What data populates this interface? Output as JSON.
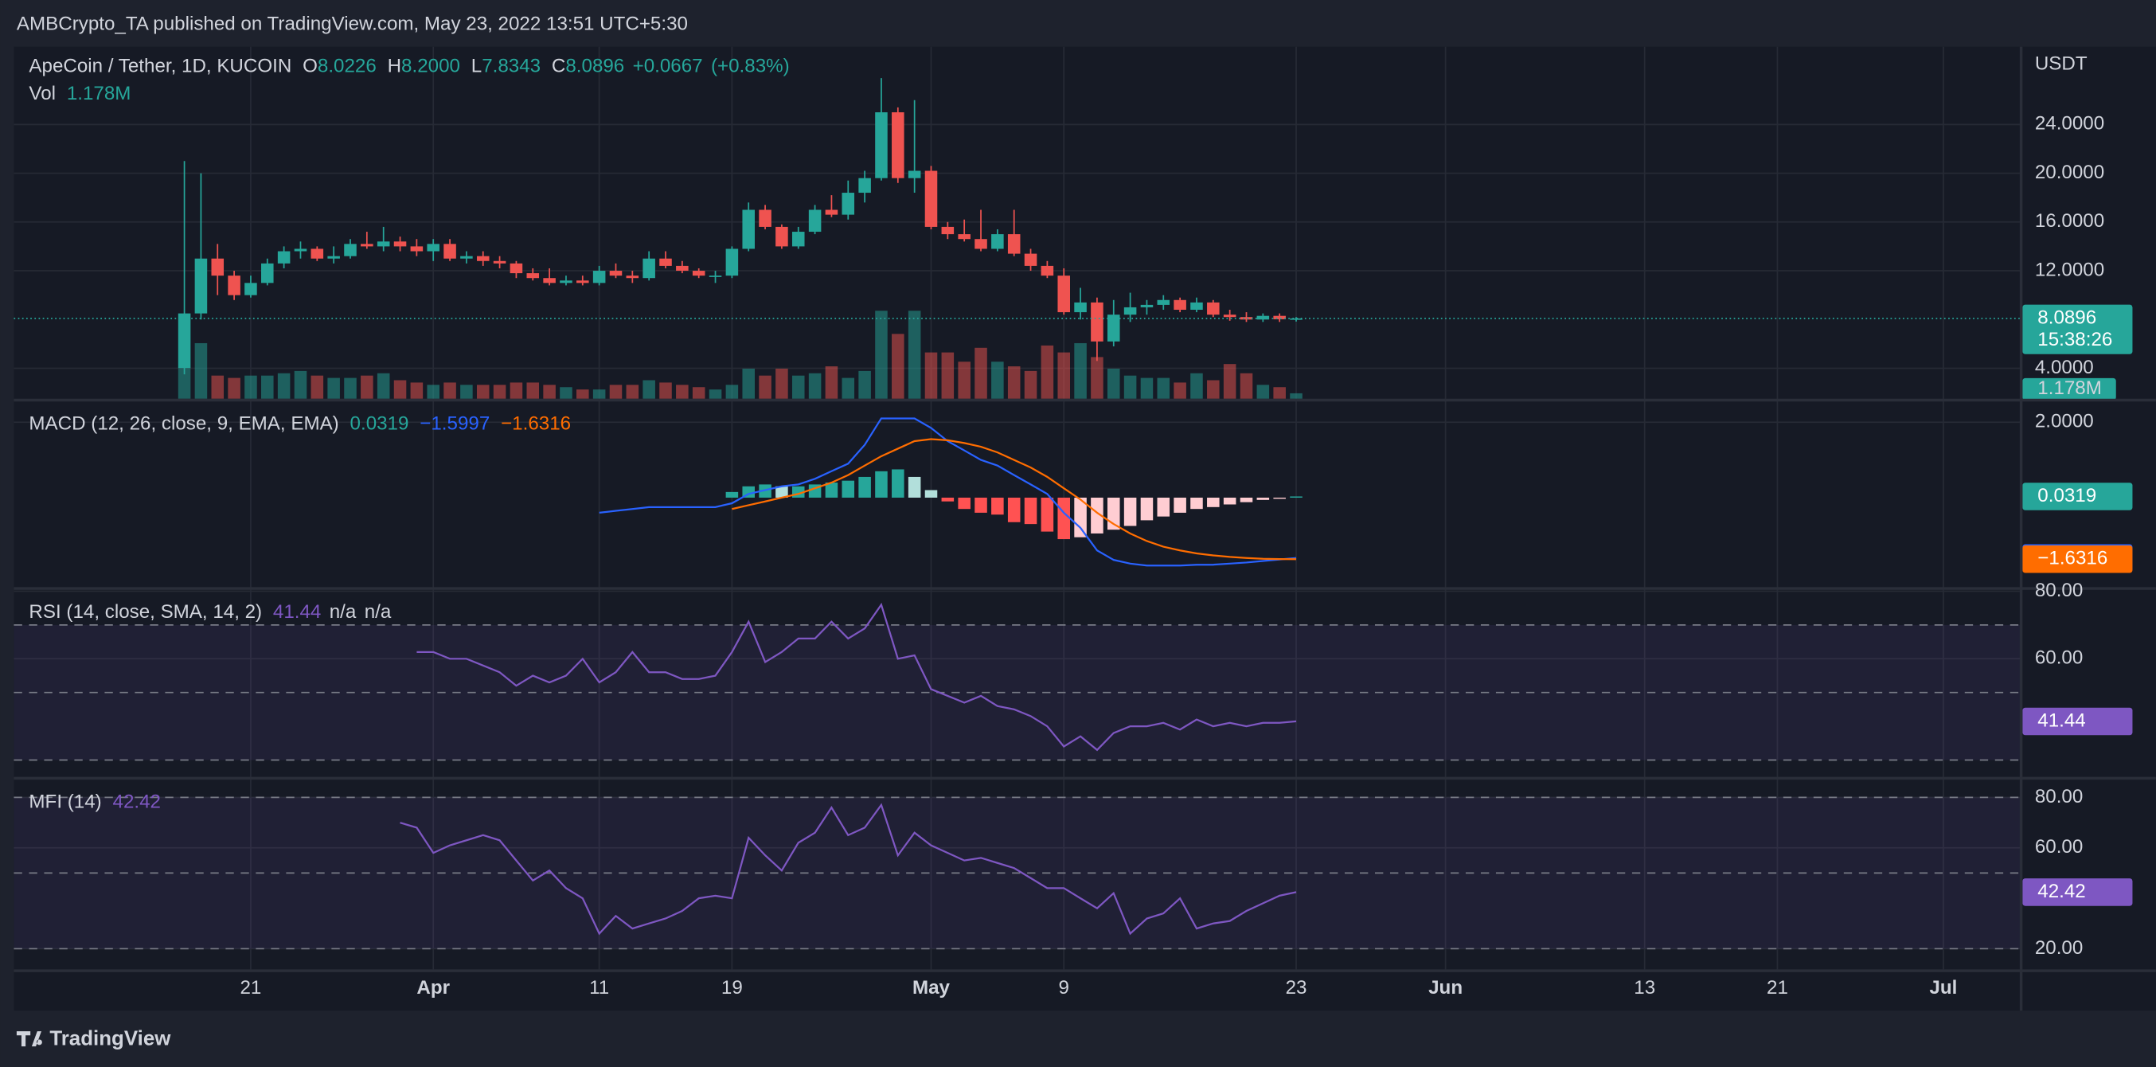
{
  "header": "AMBCrypto_TA published on TradingView.com, May 23, 2022 13:51 UTC+5:30",
  "footer": "TradingView",
  "chart_data": [
    {
      "type": "candlestick",
      "title": "ApeCoin / Tether, 1D, KUCOIN",
      "unit": "USDT",
      "up_color": "#26a69a",
      "down_color": "#ef5350",
      "legend": [
        {
          "key": "O",
          "value": 8.0226
        },
        {
          "key": "H",
          "value": 8.2,
          "label": "8.2000"
        },
        {
          "key": "L",
          "value": 7.8343
        },
        {
          "key": "C",
          "value": 8.0896
        },
        {
          "value": 0.0667,
          "label": "+0.0667"
        },
        {
          "value": 0.83,
          "label": "(+0.83%)"
        }
      ],
      "x": [
        "Mar 17",
        "Mar 18",
        "Mar 19",
        "Mar 20",
        "Mar 21",
        "Mar 22",
        "Mar 23",
        "Mar 24",
        "Mar 25",
        "Mar 26",
        "Mar 27",
        "Mar 28",
        "Mar 29",
        "Mar 30",
        "Mar 31",
        "Apr 1",
        "Apr 2",
        "Apr 3",
        "Apr 4",
        "Apr 5",
        "Apr 6",
        "Apr 7",
        "Apr 8",
        "Apr 9",
        "Apr 10",
        "Apr 11",
        "Apr 12",
        "Apr 13",
        "Apr 14",
        "Apr 15",
        "Apr 16",
        "Apr 17",
        "Apr 18",
        "Apr 19",
        "Apr 20",
        "Apr 21",
        "Apr 22",
        "Apr 23",
        "Apr 24",
        "Apr 25",
        "Apr 26",
        "Apr 27",
        "Apr 28",
        "Apr 29",
        "Apr 30",
        "May 1",
        "May 2",
        "May 3",
        "May 4",
        "May 5",
        "May 6",
        "May 7",
        "May 8",
        "May 9",
        "May 10",
        "May 11",
        "May 12",
        "May 13",
        "May 14",
        "May 15",
        "May 16",
        "May 17",
        "May 18",
        "May 19",
        "May 20",
        "May 21",
        "May 22",
        "May 23"
      ],
      "open": [
        4.0,
        8.5,
        13.0,
        11.6,
        10.0,
        11.0,
        12.6,
        13.6,
        13.8,
        13.0,
        13.2,
        14.2,
        14.0,
        14.4,
        14.0,
        13.6,
        14.2,
        13.0,
        13.2,
        12.8,
        12.6,
        11.8,
        11.4,
        11.0,
        11.2,
        11.0,
        12.0,
        11.6,
        11.4,
        13.0,
        12.4,
        12.0,
        11.6,
        11.6,
        13.8,
        17.0,
        15.6,
        14.0,
        15.2,
        17.0,
        16.6,
        18.4,
        19.6,
        25.0,
        19.6,
        20.2,
        15.6,
        15.0,
        14.6,
        13.8,
        15.0,
        13.4,
        12.4,
        11.6,
        8.6,
        9.4,
        6.2,
        8.4,
        9.0,
        9.2,
        9.6,
        8.8,
        9.4,
        8.4,
        8.2,
        8.0,
        8.3,
        8.0226
      ],
      "high": [
        21.0,
        20.0,
        14.2,
        12.0,
        11.6,
        13.0,
        14.0,
        14.4,
        14.0,
        14.0,
        14.6,
        15.2,
        15.6,
        14.8,
        14.6,
        14.6,
        14.6,
        13.6,
        13.6,
        13.2,
        12.8,
        12.2,
        12.2,
        11.6,
        11.6,
        12.4,
        12.6,
        12.0,
        13.6,
        13.6,
        12.8,
        12.2,
        12.0,
        14.0,
        17.6,
        17.4,
        15.8,
        15.6,
        17.4,
        18.2,
        19.4,
        20.2,
        27.8,
        25.4,
        26.0,
        20.6,
        16.0,
        16.2,
        17.0,
        15.4,
        17.0,
        13.8,
        12.8,
        12.2,
        10.6,
        9.8,
        9.6,
        10.2,
        9.6,
        10.0,
        9.8,
        9.8,
        9.6,
        8.8,
        8.6,
        8.5,
        8.5,
        8.2
      ],
      "low": [
        3.5,
        8.0,
        10.0,
        9.6,
        9.8,
        10.8,
        12.2,
        13.0,
        12.8,
        12.6,
        13.0,
        13.8,
        13.6,
        13.6,
        13.2,
        12.8,
        12.8,
        12.6,
        12.4,
        12.2,
        11.4,
        11.2,
        10.8,
        10.8,
        10.8,
        10.8,
        11.4,
        11.0,
        11.2,
        12.2,
        11.8,
        11.4,
        11.0,
        11.4,
        13.6,
        15.4,
        13.8,
        13.8,
        15.0,
        16.4,
        16.2,
        17.6,
        19.4,
        19.2,
        18.4,
        15.4,
        14.6,
        14.4,
        13.6,
        13.6,
        13.2,
        12.0,
        11.4,
        8.4,
        8.0,
        4.6,
        5.8,
        7.8,
        8.4,
        8.8,
        8.6,
        8.6,
        8.2,
        7.9,
        7.8,
        7.8,
        7.8,
        7.8343
      ],
      "close": [
        8.5,
        13.0,
        11.6,
        10.0,
        11.0,
        12.6,
        13.6,
        13.8,
        13.0,
        13.2,
        14.2,
        14.0,
        14.4,
        14.0,
        13.6,
        14.2,
        13.0,
        13.2,
        12.8,
        12.6,
        11.8,
        11.4,
        11.0,
        11.2,
        11.0,
        12.0,
        11.6,
        11.4,
        13.0,
        12.4,
        12.0,
        11.6,
        11.6,
        13.8,
        17.0,
        15.6,
        14.0,
        15.2,
        17.0,
        16.6,
        18.4,
        19.6,
        25.0,
        19.6,
        20.2,
        15.6,
        15.0,
        14.6,
        13.8,
        15.0,
        13.4,
        12.4,
        11.6,
        8.6,
        9.4,
        6.2,
        8.4,
        9.0,
        9.2,
        9.6,
        8.8,
        9.4,
        8.4,
        8.2,
        8.0,
        8.3,
        8.02,
        8.0896
      ],
      "volume": {
        "name": "Vol",
        "label": "1.178M",
        "values": [
          6.5,
          12,
          5,
          4.5,
          5,
          5,
          5.5,
          6,
          5,
          4.5,
          4.5,
          5,
          5.5,
          4,
          3.5,
          3,
          3.5,
          3,
          3,
          3,
          3.5,
          3.5,
          3,
          2.5,
          2,
          2,
          3,
          3,
          4,
          3.5,
          3,
          2.5,
          2,
          3,
          6.5,
          5,
          6.5,
          5,
          5.5,
          7,
          4.5,
          6,
          19,
          14,
          19,
          10,
          10,
          8,
          11,
          8,
          7,
          6,
          11.5,
          10,
          12,
          9,
          6.5,
          5,
          4.5,
          4.5,
          3.5,
          5.5,
          4,
          7.5,
          5.5,
          3,
          2.5,
          1.178
        ]
      },
      "ylim": [
        1.5,
        29.7
      ],
      "yticks": [
        {
          "value": 24,
          "label": "24.0000"
        },
        {
          "value": 20,
          "label": "20.0000"
        },
        {
          "value": 16,
          "label": "16.0000"
        },
        {
          "value": 12,
          "label": "12.0000"
        },
        {
          "value": 4,
          "label": "4.0000"
        }
      ],
      "price_labels": [
        {
          "value": 8.0896,
          "label": "8.0896",
          "countdown": "15:38:26",
          "color": "#26a69a"
        }
      ],
      "xticks": [
        {
          "value": "Mar 21",
          "label": "21"
        },
        {
          "value": "Apr 1",
          "label": "Apr"
        },
        {
          "value": "Apr 11",
          "label": "11"
        },
        {
          "value": "Apr 19",
          "label": "19"
        },
        {
          "value": "May 1",
          "label": "May"
        },
        {
          "value": "May 9",
          "label": "9"
        },
        {
          "value": "May 23",
          "label": "23"
        },
        {
          "value": "Jun 1",
          "label": "Jun"
        },
        {
          "value": "Jun 13",
          "label": "13"
        },
        {
          "value": "Jun 21",
          "label": "21"
        },
        {
          "value": "Jul 1",
          "label": "Jul"
        }
      ]
    },
    {
      "type": "macd",
      "title": "MACD (12, 26, close, 9, EMA, EMA)",
      "histogram": {
        "colors": {
          "grow_above": "#26a69a",
          "fall_above": "#b2dfdb",
          "grow_below": "#ffcdd2",
          "fall_below": "#ff5252"
        },
        "values": [
          null,
          null,
          null,
          null,
          null,
          null,
          null,
          null,
          null,
          null,
          null,
          null,
          null,
          null,
          null,
          null,
          null,
          null,
          null,
          null,
          null,
          null,
          null,
          null,
          null,
          null,
          null,
          null,
          null,
          null,
          null,
          null,
          null,
          0.15,
          0.3,
          0.35,
          0.3,
          0.3,
          0.35,
          0.4,
          0.45,
          0.55,
          0.7,
          0.75,
          0.55,
          0.2,
          -0.1,
          -0.3,
          -0.4,
          -0.45,
          -0.65,
          -0.7,
          -0.9,
          -1.1,
          -1.05,
          -0.95,
          -0.85,
          -0.75,
          -0.6,
          -0.5,
          -0.4,
          -0.3,
          -0.25,
          -0.18,
          -0.12,
          -0.06,
          -0.03,
          0.0319
        ]
      },
      "series": [
        {
          "name": "MACD",
          "color": "#2962ff",
          "values": [
            null,
            null,
            null,
            null,
            null,
            null,
            null,
            null,
            null,
            null,
            null,
            null,
            null,
            null,
            null,
            null,
            null,
            null,
            null,
            null,
            null,
            null,
            null,
            null,
            null,
            -0.4,
            -0.35,
            -0.3,
            -0.25,
            -0.25,
            -0.25,
            -0.25,
            -0.25,
            -0.15,
            0.1,
            0.2,
            0.3,
            0.35,
            0.5,
            0.7,
            0.9,
            1.4,
            2.1,
            2.1,
            2.1,
            1.85,
            1.5,
            1.25,
            1.0,
            0.85,
            0.6,
            0.35,
            0.1,
            -0.4,
            -0.8,
            -1.4,
            -1.65,
            -1.75,
            -1.8,
            -1.8,
            -1.8,
            -1.78,
            -1.78,
            -1.75,
            -1.72,
            -1.68,
            -1.64,
            -1.5997
          ]
        },
        {
          "name": "Signal",
          "color": "#ff6d00",
          "values": [
            null,
            null,
            null,
            null,
            null,
            null,
            null,
            null,
            null,
            null,
            null,
            null,
            null,
            null,
            null,
            null,
            null,
            null,
            null,
            null,
            null,
            null,
            null,
            null,
            null,
            null,
            null,
            null,
            null,
            null,
            null,
            null,
            null,
            -0.3,
            -0.2,
            -0.1,
            0,
            0.1,
            0.25,
            0.4,
            0.6,
            0.85,
            1.1,
            1.3,
            1.5,
            1.55,
            1.52,
            1.45,
            1.35,
            1.2,
            1.0,
            0.8,
            0.55,
            0.25,
            -0.05,
            -0.4,
            -0.7,
            -0.95,
            -1.15,
            -1.3,
            -1.4,
            -1.48,
            -1.53,
            -1.57,
            -1.6,
            -1.62,
            -1.63,
            -1.6316
          ]
        }
      ],
      "ylim": [
        -2.3,
        2.55
      ],
      "yticks": [
        {
          "value": 2,
          "label": "2.0000"
        }
      ],
      "price_labels": [
        {
          "value": 0.0319,
          "label": "0.0319",
          "color": "#26a69a"
        },
        {
          "value": -1.5997,
          "label": "−1.5997",
          "color": "#2962ff"
        },
        {
          "value": -1.6316,
          "label": "−1.6316",
          "color": "#ff6d00"
        }
      ]
    },
    {
      "type": "line",
      "title": "RSI (14, close, SMA, 14, 2)",
      "extra": [
        "n/a",
        "n/a"
      ],
      "series": [
        {
          "name": "RSI",
          "color": "#7e57c2",
          "values": [
            null,
            null,
            null,
            null,
            null,
            null,
            null,
            null,
            null,
            null,
            null,
            null,
            null,
            null,
            62,
            62,
            60,
            60,
            58,
            56,
            52,
            55,
            53,
            55,
            60,
            53,
            56,
            62,
            56,
            56,
            54,
            54,
            55,
            62,
            71,
            59,
            62,
            66,
            66,
            71,
            66,
            69,
            76,
            60,
            61,
            51,
            49,
            47,
            49,
            46,
            45,
            43,
            40,
            34,
            37,
            33,
            38,
            40,
            40,
            41,
            39,
            42,
            40,
            41,
            40,
            41,
            41,
            41.44
          ]
        }
      ],
      "bands": [
        70,
        50,
        30
      ],
      "band_fill": "rgba(126,87,194,0.10)",
      "ylim": [
        25,
        80
      ],
      "yticks": [
        {
          "value": 80,
          "label": "80.00"
        },
        {
          "value": 60,
          "label": "60.00"
        }
      ],
      "price_labels": [
        {
          "value": 41.44,
          "label": "41.44",
          "color": "#7e57c2"
        }
      ]
    },
    {
      "type": "line",
      "title": "MFI (14)",
      "series": [
        {
          "name": "MFI",
          "color": "#7e57c2",
          "values": [
            null,
            null,
            null,
            null,
            null,
            null,
            null,
            null,
            null,
            null,
            null,
            null,
            null,
            70,
            68,
            58,
            61,
            63,
            65,
            63,
            55,
            47,
            51,
            44,
            40,
            26,
            33,
            28,
            30,
            32,
            35,
            40,
            41,
            40,
            64,
            57,
            51,
            62,
            66,
            76,
            65,
            68,
            77,
            57,
            66,
            61,
            58,
            55,
            56,
            54,
            52,
            48,
            44,
            44,
            40,
            36,
            42,
            26,
            32,
            34,
            40,
            28,
            30,
            31,
            35,
            38,
            41,
            42.42
          ]
        }
      ],
      "bands": [
        80,
        50,
        20
      ],
      "band_fill": "rgba(126,87,194,0.10)",
      "ylim": [
        11.8,
        86.5
      ],
      "yticks": [
        {
          "value": 80,
          "label": "80.00"
        },
        {
          "value": 60,
          "label": "60.00"
        },
        {
          "value": 20,
          "label": "20.00"
        }
      ],
      "price_labels": [
        {
          "value": 42.42,
          "label": "42.42",
          "color": "#7e57c2"
        }
      ]
    }
  ]
}
